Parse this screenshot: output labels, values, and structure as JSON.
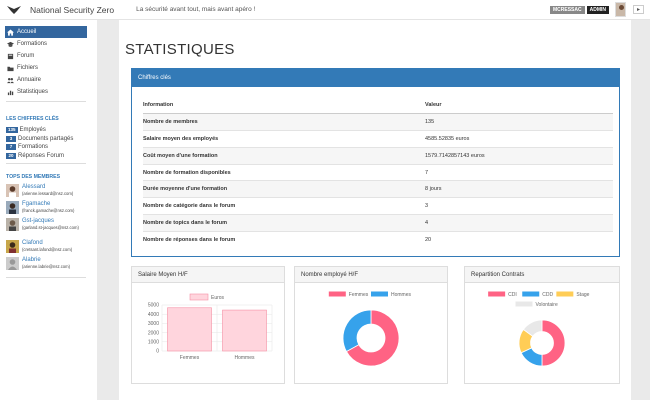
{
  "header": {
    "brand": "National Security Zero",
    "tagline": "La sécurité avant tout, mais avant apéro !",
    "user_badge": "MCRESSAC",
    "role_badge": "ADMIN",
    "lang": "▸"
  },
  "sidebar": {
    "nav": [
      {
        "label": "Accueil",
        "icon": "home-icon"
      },
      {
        "label": "Formations",
        "icon": "graduation-cap-icon"
      },
      {
        "label": "Forum",
        "icon": "book-icon"
      },
      {
        "label": "Fichiers",
        "icon": "folder-icon"
      },
      {
        "label": "Annuaire",
        "icon": "users-icon"
      },
      {
        "label": "Statistiques",
        "icon": "bar-chart-icon"
      }
    ],
    "key_figures_title": "LES CHIFFRES CLÉS",
    "key_figures": [
      {
        "count": "135",
        "label": "Employés"
      },
      {
        "count": "3",
        "label": "Documents partagés"
      },
      {
        "count": "7",
        "label": "Formations"
      },
      {
        "count": "20",
        "label": "Réponses Forum"
      }
    ],
    "top_members_title": "TOPS DES MEMBRES",
    "members": [
      {
        "name": "Alessard",
        "email": "(arienne.lessard@nsz.com)"
      },
      {
        "name": "Fgamache",
        "email": "(franck.gamache@nsz.com)"
      },
      {
        "name": "Gst-jacques",
        "email": "(garland.st-jacques@nsz.com)"
      },
      {
        "name": "Clafond",
        "email": "(cretsant.lafond@nsz.com)"
      },
      {
        "name": "Alabrie",
        "email": "(arienne.labrie@nsz.com)"
      }
    ]
  },
  "main": {
    "title": "STATISTIQUES",
    "key_panel_title": "Chiffres clés",
    "table_headers": [
      "Information",
      "Valeur"
    ],
    "table_rows": [
      [
        "Nombre de membres",
        "135"
      ],
      [
        "Salaire moyen des employés",
        "4585.52835 euros"
      ],
      [
        "Coût moyen d'une formation",
        "1579.7142857143 euros"
      ],
      [
        "Nombre de formation disponibles",
        "7"
      ],
      [
        "Durée moyenne d'une formation",
        "8 jours"
      ],
      [
        "Nombre de catégorie dans le forum",
        "3"
      ],
      [
        "Nombre de topics dans le forum",
        "4"
      ],
      [
        "Nombre de réponses dans le forum",
        "20"
      ]
    ]
  },
  "chart_data": [
    {
      "type": "bar",
      "title": "Salaire Moyen H/F",
      "categories": [
        "Femmes",
        "Hommes"
      ],
      "series": [
        {
          "name": "Euros",
          "values": [
            4700,
            4450
          ]
        }
      ],
      "ylim": [
        0,
        5000
      ],
      "yticks": [
        "0",
        "1000",
        "2000",
        "3000",
        "4000",
        "5000"
      ],
      "legend": "top",
      "grid": true,
      "colors": {
        "fill": "#ffd5dd",
        "stroke": "#f58fa4"
      }
    },
    {
      "type": "pie",
      "title": "Nombre employé H/F",
      "labels": [
        "Femmes",
        "Hommes"
      ],
      "values": [
        67,
        33
      ],
      "colors": [
        "#ff6384",
        "#36a2eb"
      ],
      "legend": "top"
    },
    {
      "type": "pie",
      "title": "Repartition Contrats",
      "labels": [
        "CDI",
        "CDD",
        "Stage",
        "Volontaire"
      ],
      "values": [
        50,
        18,
        17,
        15
      ],
      "colors": [
        "#ff6384",
        "#36a2eb",
        "#ffcd56",
        "#e8e8e8"
      ],
      "legend": "top"
    }
  ]
}
